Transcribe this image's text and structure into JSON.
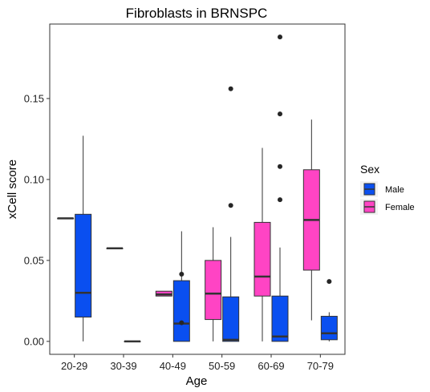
{
  "chart_data": {
    "type": "boxplot",
    "title": "Fibroblasts in BRNSPC",
    "xlabel": "Age",
    "ylabel": "xCell score",
    "categories": [
      "20-29",
      "30-39",
      "40-49",
      "50-59",
      "60-69",
      "70-79"
    ],
    "y_ticks": [
      0.0,
      0.05,
      0.1,
      0.15
    ],
    "y_tick_labels": [
      "0.00",
      "0.05",
      "0.10",
      "0.15"
    ],
    "ylim": [
      -0.008,
      0.196
    ],
    "grid": false,
    "legend": {
      "title": "Sex",
      "position": "right",
      "entries": [
        {
          "label": "Male",
          "color": "#0a4ff0"
        },
        {
          "label": "Female",
          "color": "#ff44c4"
        }
      ]
    },
    "series": [
      {
        "name": "Female",
        "color": "#ff44c4",
        "boxes": [
          {
            "category": "20-29",
            "min": 0.076,
            "q1": 0.076,
            "median": 0.076,
            "q3": 0.076,
            "max": 0.076,
            "outliers": []
          },
          {
            "category": "30-39",
            "min": 0.0575,
            "q1": 0.0575,
            "median": 0.0575,
            "q3": 0.0575,
            "max": 0.0575,
            "outliers": []
          },
          {
            "category": "40-49",
            "min": 0.028,
            "q1": 0.028,
            "median": 0.029,
            "q3": 0.031,
            "max": 0.031,
            "outliers": []
          },
          {
            "category": "50-59",
            "min": 0.0,
            "q1": 0.0135,
            "median": 0.0295,
            "q3": 0.05,
            "max": 0.0705,
            "outliers": []
          },
          {
            "category": "60-69",
            "min": 0.0,
            "q1": 0.028,
            "median": 0.04,
            "q3": 0.0735,
            "max": 0.1195,
            "outliers": []
          },
          {
            "category": "70-79",
            "min": 0.013,
            "q1": 0.044,
            "median": 0.075,
            "q3": 0.106,
            "max": 0.137,
            "outliers": []
          }
        ]
      },
      {
        "name": "Male",
        "color": "#0a4ff0",
        "boxes": [
          {
            "category": "20-29",
            "min": 0.0,
            "q1": 0.015,
            "median": 0.03,
            "q3": 0.0785,
            "max": 0.127,
            "outliers": []
          },
          {
            "category": "30-39",
            "min": 0.0,
            "q1": 0.0,
            "median": 0.0,
            "q3": 0.0,
            "max": 0.0,
            "outliers": []
          },
          {
            "category": "40-49",
            "min": 0.0,
            "q1": 0.0,
            "median": 0.011,
            "q3": 0.0375,
            "max": 0.068,
            "outliers": [
              0.0415,
              0.0115
            ]
          },
          {
            "category": "50-59",
            "min": 0.0,
            "q1": 0.0,
            "median": 0.001,
            "q3": 0.0275,
            "max": 0.0645,
            "outliers": [
              0.156,
              0.084
            ]
          },
          {
            "category": "60-69",
            "min": 0.0,
            "q1": 0.0,
            "median": 0.003,
            "q3": 0.028,
            "max": 0.058,
            "outliers": [
              0.188,
              0.1405,
              0.108,
              0.0875
            ]
          },
          {
            "category": "70-79",
            "min": 0.0,
            "q1": 0.001,
            "median": 0.005,
            "q3": 0.0155,
            "max": 0.018,
            "outliers": [
              0.037
            ]
          }
        ]
      }
    ]
  }
}
